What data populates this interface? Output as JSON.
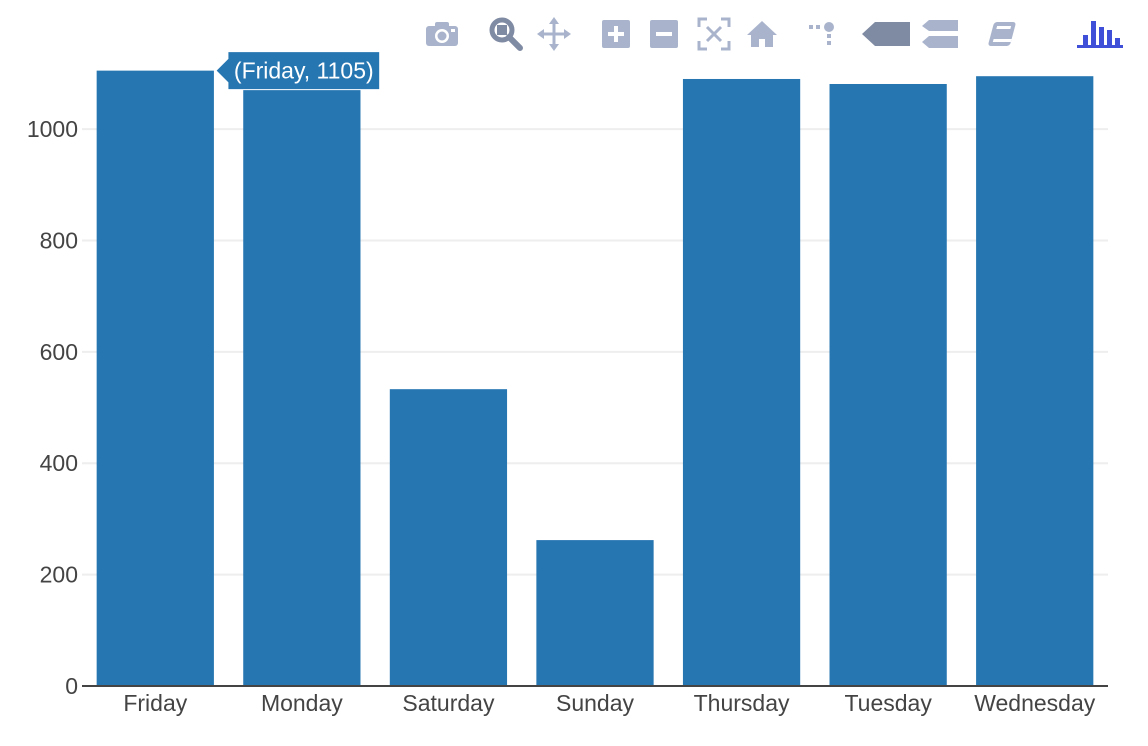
{
  "modebar": {
    "buttons": [
      {
        "name": "camera-icon",
        "title": "Download plot as a png"
      },
      {
        "name": "zoom-icon",
        "title": "Zoom"
      },
      {
        "name": "pan-icon",
        "title": "Pan"
      },
      {
        "name": "zoom-in-icon",
        "title": "Zoom in"
      },
      {
        "name": "zoom-out-icon",
        "title": "Zoom out"
      },
      {
        "name": "autoscale-icon",
        "title": "Autoscale"
      },
      {
        "name": "reset-axes-icon",
        "title": "Reset axes"
      },
      {
        "name": "spikelines-icon",
        "title": "Toggle Spike Lines"
      },
      {
        "name": "hover-closest-icon",
        "title": "Show closest data on hover"
      },
      {
        "name": "hover-compare-icon",
        "title": "Compare data on hover"
      },
      {
        "name": "edit-chart-icon",
        "title": "Edit in Chart Studio"
      },
      {
        "name": "plotly-logo-icon",
        "title": "Produced with Plotly"
      }
    ],
    "colors": {
      "icon": "#A9B4CC",
      "active": "#7F8AA3",
      "logo": "#3F4FD8"
    }
  },
  "chart_data": {
    "type": "bar",
    "categories": [
      "Friday",
      "Monday",
      "Saturday",
      "Sunday",
      "Thursday",
      "Tuesday",
      "Wednesday"
    ],
    "values": [
      1105,
      1075,
      533,
      262,
      1090,
      1081,
      1095
    ],
    "ylim": [
      0,
      1160
    ],
    "yticks": [
      0,
      200,
      400,
      600,
      800,
      1000
    ],
    "ytick_labels": [
      "0",
      "200",
      "400",
      "600",
      "800",
      "1000"
    ],
    "grid": true,
    "bar_color": "#2676B2",
    "hover": {
      "category_index": 0,
      "label": "(Friday, 1105)"
    }
  }
}
